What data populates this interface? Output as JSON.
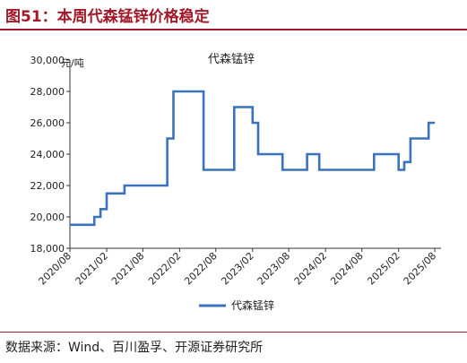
{
  "figure": {
    "title": "图51：本周代森锰锌价格稳定",
    "source": "数据来源：Wind、百川盈孚、开源证券研究所",
    "accent_color": "#a2192a"
  },
  "chart_data": {
    "type": "line",
    "title": "代森锰锌",
    "unit_label": "元/吨",
    "ylim": [
      18000,
      30000
    ],
    "y_ticks": [
      18000,
      20000,
      22000,
      24000,
      26000,
      28000,
      30000
    ],
    "y_tick_labels": [
      "18,000",
      "20,000",
      "22,000",
      "24,000",
      "26,000",
      "28,000",
      "30,000"
    ],
    "x_ticks": [
      "2020-08",
      "2021-02",
      "2021-08",
      "2022-02",
      "2022-08",
      "2023-02",
      "2023-08",
      "2024-02",
      "2024-08",
      "2025-02",
      "2025-08"
    ],
    "x_tick_labels": [
      "2020/08",
      "2021/02",
      "2021/08",
      "2022/02",
      "2022/08",
      "2023/02",
      "2023/08",
      "2024/02",
      "2024/08",
      "2025/02",
      "2025/08"
    ],
    "xlim": [
      "2020-08-01",
      "2025-09-01"
    ],
    "grid": false,
    "legend_position": "bottom",
    "series": [
      {
        "name": "代森锰锌",
        "color": "#3a73bc",
        "points": [
          [
            "2020-08-01",
            19500
          ],
          [
            "2020-12-01",
            19500
          ],
          [
            "2020-12-01",
            20000
          ],
          [
            "2021-01-01",
            20000
          ],
          [
            "2021-01-01",
            20500
          ],
          [
            "2021-02-01",
            20500
          ],
          [
            "2021-02-01",
            21500
          ],
          [
            "2021-05-01",
            21500
          ],
          [
            "2021-05-01",
            22000
          ],
          [
            "2021-12-01",
            22000
          ],
          [
            "2021-12-01",
            25000
          ],
          [
            "2022-01-01",
            25000
          ],
          [
            "2022-01-01",
            28000
          ],
          [
            "2022-06-01",
            28000
          ],
          [
            "2022-06-01",
            23000
          ],
          [
            "2022-11-01",
            23000
          ],
          [
            "2022-11-01",
            27000
          ],
          [
            "2023-02-01",
            27000
          ],
          [
            "2023-02-01",
            26000
          ],
          [
            "2023-03-01",
            26000
          ],
          [
            "2023-03-01",
            24000
          ],
          [
            "2023-07-01",
            24000
          ],
          [
            "2023-07-01",
            23000
          ],
          [
            "2023-11-01",
            23000
          ],
          [
            "2023-11-01",
            24000
          ],
          [
            "2024-01-01",
            24000
          ],
          [
            "2024-01-01",
            23000
          ],
          [
            "2024-10-01",
            23000
          ],
          [
            "2024-10-01",
            24000
          ],
          [
            "2025-02-01",
            24000
          ],
          [
            "2025-02-01",
            23000
          ],
          [
            "2025-03-01",
            23000
          ],
          [
            "2025-03-01",
            23500
          ],
          [
            "2025-04-01",
            23500
          ],
          [
            "2025-04-01",
            25000
          ],
          [
            "2025-07-01",
            25000
          ],
          [
            "2025-07-01",
            26000
          ],
          [
            "2025-08-01",
            26000
          ]
        ]
      }
    ]
  }
}
